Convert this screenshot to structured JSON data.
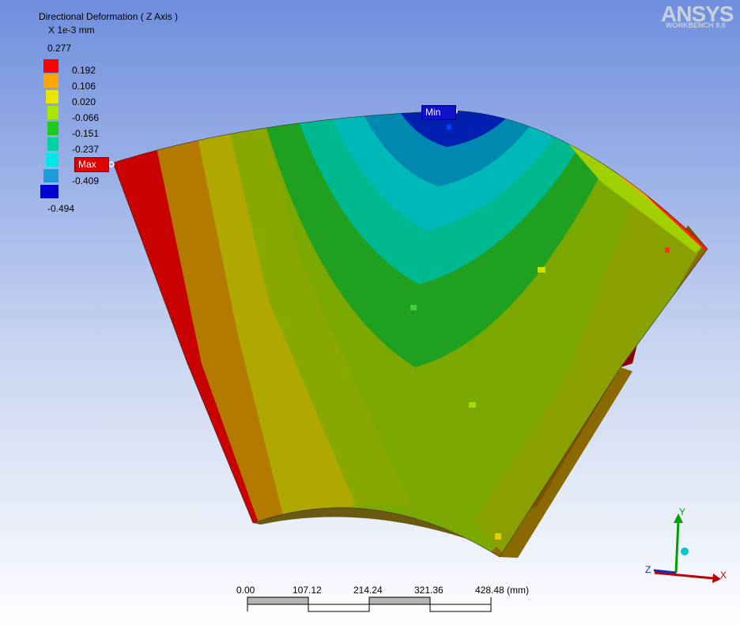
{
  "legend": {
    "title": "Directional Deformation ( Z Axis )",
    "units": "X 1e-3 mm",
    "max_value": "0.277",
    "min_value": "-0.494",
    "bands": [
      {
        "label": "0.192",
        "color": "#ff0000"
      },
      {
        "label": "0.106",
        "color": "#ffa500"
      },
      {
        "label": "0.020",
        "color": "#e6e600"
      },
      {
        "label": "-0.066",
        "color": "#a6e600"
      },
      {
        "label": "-0.151",
        "color": "#1ec81e"
      },
      {
        "label": "-0.237",
        "color": "#00d2a0"
      },
      {
        "label": "",
        "color": "#00e6e6"
      },
      {
        "label": "-0.409",
        "color": "#1e9bdc"
      },
      {
        "label": "",
        "color": "#0000d2"
      }
    ]
  },
  "probes": {
    "max_label": "Max",
    "min_label": "Min"
  },
  "logo": {
    "brand": "ANSYS",
    "product": "WORKBENCH 9.0"
  },
  "scale_bar": {
    "ticks": [
      "0.00",
      "107.12",
      "214.24",
      "321.36",
      "428.48 (mm)"
    ]
  },
  "triad": {
    "x": "X",
    "y": "Y",
    "z": "Z"
  },
  "colors": {
    "background_top": "#6e8ede",
    "background_bottom": "#ffffff"
  }
}
